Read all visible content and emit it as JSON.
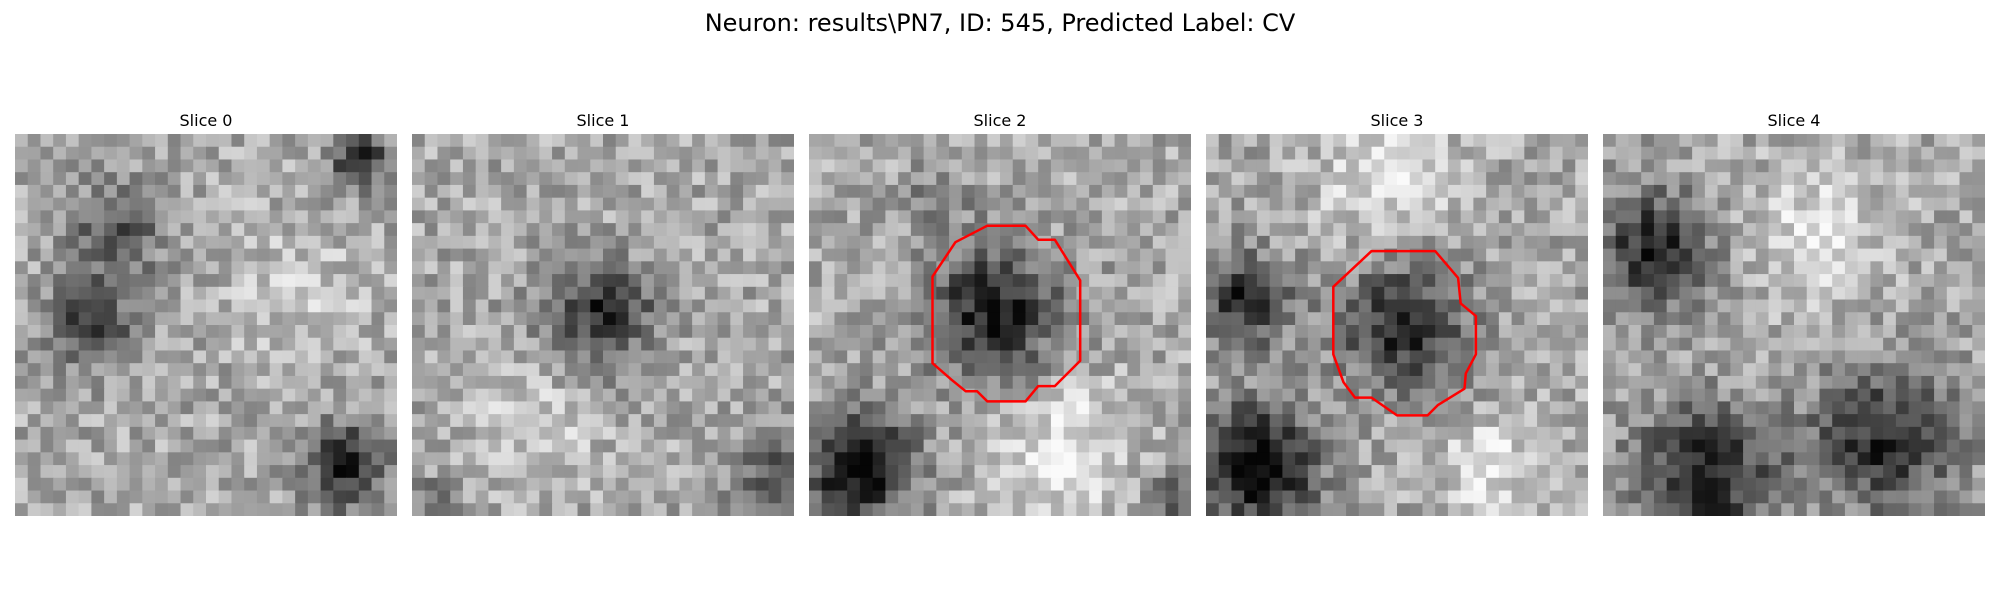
{
  "figure": {
    "title": "Neuron: results\\PN7, ID: 545, Predicted Label: CV"
  },
  "panels": [
    {
      "title": "Slice 0",
      "has_contour": false
    },
    {
      "title": "Slice 1",
      "has_contour": false
    },
    {
      "title": "Slice 2",
      "has_contour": true
    },
    {
      "title": "Slice 3",
      "has_contour": true
    },
    {
      "title": "Slice 4",
      "has_contour": false
    }
  ],
  "colors": {
    "background": "#ffffff",
    "contour": "#ff0000",
    "colormap": "gray"
  }
}
